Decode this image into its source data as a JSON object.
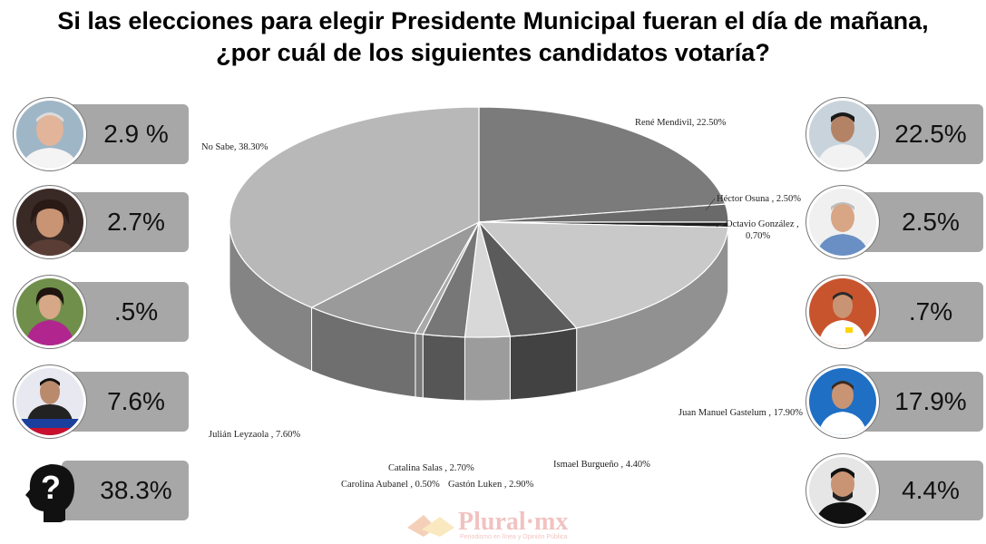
{
  "title_line1": "Si las elecciones para elegir Presidente Municipal fueran el día de mañana,",
  "title_line2": "¿por cuál de los siguientes candidatos votaría?",
  "left_cards": [
    {
      "value": "2.9 %",
      "avatar": "candidate-photo"
    },
    {
      "value": "2.7%",
      "avatar": "candidate-photo"
    },
    {
      "value": ".5%",
      "avatar": "candidate-photo"
    },
    {
      "value": "7.6%",
      "avatar": "candidate-photo"
    },
    {
      "value": "38.3%",
      "avatar": "question-head-icon"
    }
  ],
  "right_cards": [
    {
      "value": "22.5%",
      "avatar": "candidate-photo"
    },
    {
      "value": "2.5%",
      "avatar": "candidate-photo"
    },
    {
      "value": ".7%",
      "avatar": "candidate-photo"
    },
    {
      "value": "17.9%",
      "avatar": "candidate-photo"
    },
    {
      "value": "4.4%",
      "avatar": "candidate-photo"
    }
  ],
  "watermark": {
    "brand": "Plural·mx",
    "tagline": "Periodismo en línea y Opinión Pública"
  },
  "chart_data": {
    "type": "pie",
    "style": "3d",
    "title": "Si las elecciones para elegir Presidente Municipal fueran el día de mañana, ¿por cuál de los siguientes candidatos votaría?",
    "slices": [
      {
        "name": "René Mendivil",
        "label": "René Mendivil, 22.50%",
        "value": 22.5,
        "color": "#7b7b7b"
      },
      {
        "name": "Héctor Osuna",
        "label": "Héctor Osuna , 2.50%",
        "value": 2.5,
        "color": "#6a6a6a"
      },
      {
        "name": "Octavio González",
        "label": "Octavio González , 0.70%",
        "value": 0.7,
        "color": "#1e1e1e"
      },
      {
        "name": "Juan Manuel Gastelum",
        "label": "Juan Manuel Gastelum , 17.90%",
        "value": 17.9,
        "color": "#c9c9c9"
      },
      {
        "name": "Ismael Burgueño",
        "label": "Ismael Burgueño , 4.40%",
        "value": 4.4,
        "color": "#5b5b5b"
      },
      {
        "name": "Gastón Luken",
        "label": "Gastón Luken , 2.90%",
        "value": 2.9,
        "color": "#d8d8d8"
      },
      {
        "name": "Catalina Salas",
        "label": "Catalina Salas , 2.70%",
        "value": 2.7,
        "color": "#777777"
      },
      {
        "name": "Carolina Aubanel",
        "label": "Carolina Aubanel , 0.50%",
        "value": 0.5,
        "color": "#a9a9a9"
      },
      {
        "name": "Julián Leyzaola",
        "label": "Julián Leyzaola , 7.60%",
        "value": 7.6,
        "color": "#9a9a9a"
      },
      {
        "name": "No Sabe",
        "label": "No Sabe, 38.30%",
        "value": 38.3,
        "color": "#b8b8b8"
      }
    ]
  }
}
